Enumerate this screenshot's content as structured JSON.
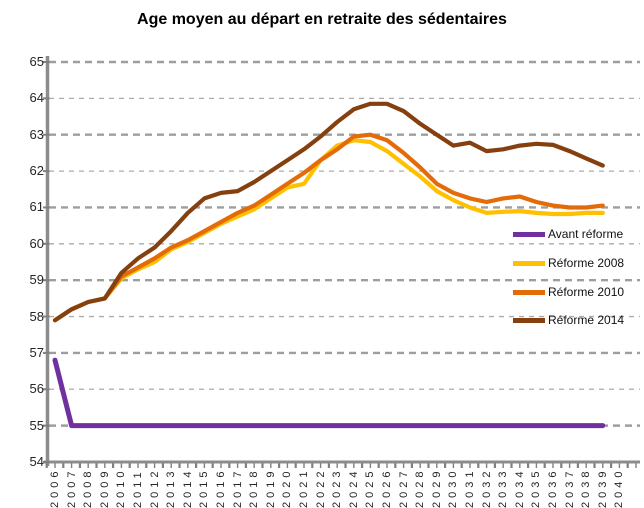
{
  "title": "Age moyen au départ en retraite des sédentaires",
  "chart_data": {
    "type": "line",
    "title": "Age moyen au départ en retraite des sédentaires",
    "xlabel": "",
    "ylabel": "",
    "ylim": [
      54,
      65
    ],
    "y_ticks": [
      54,
      55,
      56,
      57,
      58,
      59,
      60,
      61,
      62,
      63,
      64,
      65
    ],
    "grid": "horizontal-dashed",
    "legend_position": "right-middle",
    "x_tick_labels": [
      "2006",
      "2007",
      "2008",
      "2009",
      "2010",
      "2011",
      "2012",
      "2013",
      "2014",
      "2015",
      "2016",
      "2017",
      "2018",
      "2019",
      "2020",
      "2021",
      "2022",
      "2023",
      "2024",
      "2025",
      "2026",
      "2027",
      "2028",
      "2029",
      "2030",
      "2031",
      "2032",
      "2033",
      "2034",
      "2035",
      "2036",
      "2037",
      "2038",
      "2039",
      "2040"
    ],
    "x": [
      2006,
      2007,
      2008,
      2009,
      2010,
      2011,
      2012,
      2013,
      2014,
      2015,
      2016,
      2017,
      2018,
      2019,
      2020,
      2021,
      2022,
      2023,
      2024,
      2025,
      2026,
      2027,
      2028,
      2029,
      2030,
      2031,
      2032,
      2033,
      2034,
      2035,
      2036,
      2037,
      2038,
      2039
    ],
    "series": [
      {
        "name": "Avant réforme",
        "color": "#7030A0",
        "values": [
          56.8,
          55,
          55,
          55,
          55,
          55,
          55,
          55,
          55,
          55,
          55,
          55,
          55,
          55,
          55,
          55,
          55,
          55,
          55,
          55,
          55,
          55,
          55,
          55,
          55,
          55,
          55,
          55,
          55,
          55,
          55,
          55,
          55,
          55
        ]
      },
      {
        "name": "Réforme 2008",
        "color": "#FFC000",
        "values": [
          57.9,
          58.2,
          58.4,
          58.5,
          59.05,
          59.3,
          59.5,
          59.85,
          60.05,
          60.3,
          60.55,
          60.75,
          60.95,
          61.25,
          61.55,
          61.65,
          62.3,
          62.7,
          62.85,
          62.8,
          62.55,
          62.2,
          61.85,
          61.45,
          61.2,
          61.0,
          60.85,
          60.88,
          60.9,
          60.85,
          60.82,
          60.82,
          60.85,
          60.85
        ]
      },
      {
        "name": "Réforme 2010",
        "color": "#E36C09",
        "values": [
          57.9,
          58.2,
          58.4,
          58.5,
          59.1,
          59.35,
          59.6,
          59.9,
          60.1,
          60.35,
          60.6,
          60.85,
          61.05,
          61.35,
          61.65,
          61.95,
          62.3,
          62.6,
          62.95,
          63.0,
          62.85,
          62.5,
          62.1,
          61.65,
          61.4,
          61.25,
          61.15,
          61.25,
          61.3,
          61.15,
          61.05,
          61.0,
          61.0,
          61.05
        ]
      },
      {
        "name": "Réforme 2014",
        "color": "#85400F",
        "values": [
          57.9,
          58.2,
          58.4,
          58.5,
          59.2,
          59.6,
          59.9,
          60.35,
          60.85,
          61.25,
          61.4,
          61.45,
          61.7,
          62.0,
          62.3,
          62.6,
          62.95,
          63.35,
          63.7,
          63.85,
          63.85,
          63.65,
          63.3,
          63.0,
          62.7,
          62.78,
          62.55,
          62.6,
          62.7,
          62.75,
          62.72,
          62.55,
          62.35,
          62.15
        ]
      }
    ],
    "styles": {
      "gridline_color_major": "#9E9E9E",
      "gridline_color_minor": "#ABABAB",
      "axis_color": "#8C8C8C",
      "tick_color": "#808080",
      "background": "#FFFFFF"
    }
  },
  "legend": {
    "items": [
      {
        "label": "Avant réforme"
      },
      {
        "label": "Réforme 2008"
      },
      {
        "label": "Réforme 2010"
      },
      {
        "label": "Réforme 2014"
      }
    ]
  }
}
